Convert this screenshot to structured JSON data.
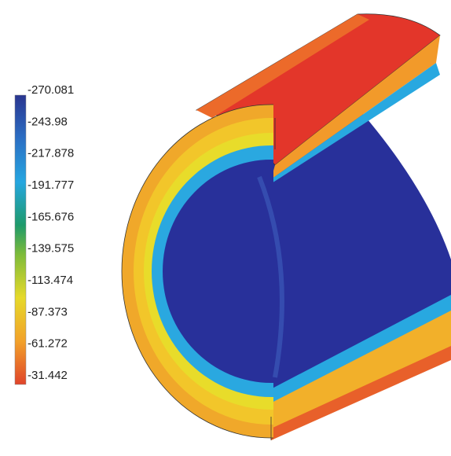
{
  "legend": {
    "labels": [
      "-270.081",
      "-243.98",
      "-217.878",
      "-191.777",
      "-165.676",
      "-139.575",
      "-113.474",
      "-87.373",
      "-61.272",
      "-31.442"
    ]
  }
}
